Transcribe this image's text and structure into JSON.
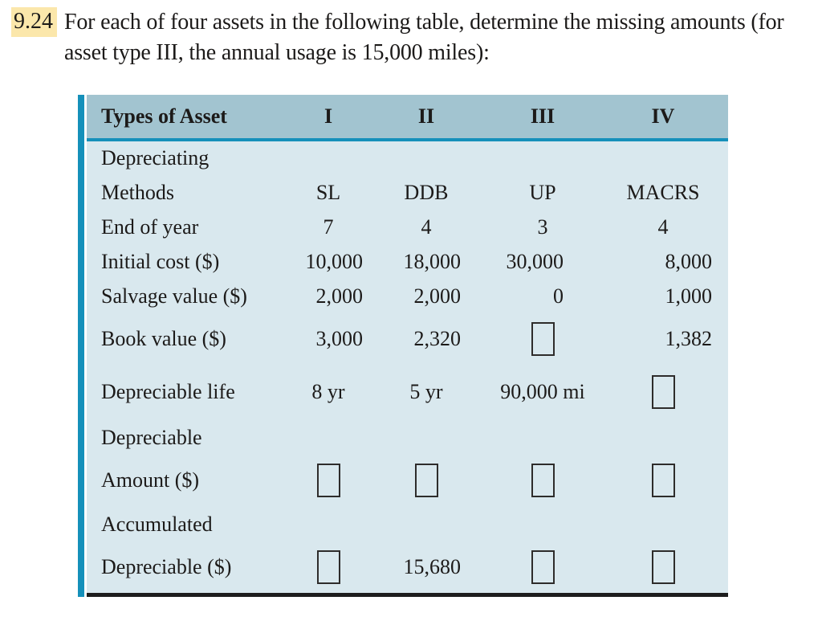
{
  "problem": {
    "number": "9.24",
    "text_line1": "For each of four assets in the following table, determine the missing amounts (for",
    "text_line2": "asset type III, the annual usage is 15,000 miles):"
  },
  "table": {
    "header": {
      "label": "Types of Asset",
      "col1": "I",
      "col2": "II",
      "col3": "III",
      "col4": "IV"
    },
    "rows": {
      "depreciating": {
        "label": "Depreciating"
      },
      "methods": {
        "label": "Methods",
        "c1": "SL",
        "c2": "DDB",
        "c3": "UP",
        "c4": "MACRS"
      },
      "end_of_year": {
        "label": "End of year",
        "c1": "7",
        "c2": "4",
        "c3": "3",
        "c4": "4"
      },
      "initial_cost": {
        "label": "Initial cost ($)",
        "c1": "10,000",
        "c2": "18,000",
        "c3": "30,000",
        "c4": "8,000"
      },
      "salvage_value": {
        "label": "Salvage value ($)",
        "c1": "2,000",
        "c2": "2,000",
        "c3": "0",
        "c4": "1,000"
      },
      "book_value": {
        "label": "Book value ($)",
        "c1": "3,000",
        "c2": "2,320",
        "c3_missing": true,
        "c4": "1,382"
      },
      "depreciable_life": {
        "label": "Depreciable life",
        "c1": "8 yr",
        "c2": "5 yr",
        "c3": "90,000 mi",
        "c4_missing": true
      },
      "depreciable": {
        "label": "Depreciable"
      },
      "amount": {
        "label": "Amount ($)",
        "c1_missing": true,
        "c2_missing": true,
        "c3_missing": true,
        "c4_missing": true
      },
      "accumulated": {
        "label": "Accumulated"
      },
      "depreciable_total": {
        "label": "Depreciable ($)",
        "c1_missing": true,
        "c2": "15,680",
        "c3_missing": true,
        "c4_missing": true
      }
    }
  },
  "colors": {
    "highlight": "#fbe7ab",
    "header_band": "#a2c4d0",
    "table_body": "#d9e8ee",
    "accent_cyan": "#1590ba",
    "bottom_border": "#1d1d1d",
    "text": "#1c1a19"
  }
}
